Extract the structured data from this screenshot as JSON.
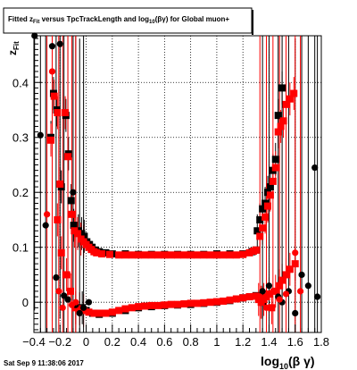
{
  "title": {
    "pre": "Fitted  z",
    "sub1": "Fit",
    "mid": " versus TpcTrackLength and log",
    "sub2": "10",
    "post": "(βγ) for Global muon+"
  },
  "ylabel": {
    "main": "z",
    "sub": "Fit"
  },
  "xlabel": {
    "main": "log",
    "sub": "10",
    "post": "(β γ)"
  },
  "footer": "Sat Sep  9 11:38:06 2017",
  "axes": {
    "xlim": [
      -0.4,
      1.8
    ],
    "ylim": [
      -0.055,
      0.485
    ],
    "xticks": [
      -0.4,
      -0.2,
      0,
      0.2,
      0.4,
      0.6,
      0.8,
      1,
      1.2,
      1.4,
      1.6,
      1.8
    ],
    "xtick_labels": [
      "−0.4",
      "−0.2",
      "0",
      "0.2",
      "0.4",
      "0.6",
      "0.8",
      "1",
      "1.2",
      "1.4",
      "1.6",
      "1.8"
    ],
    "yticks": [
      0,
      0.1,
      0.2,
      0.3,
      0.4
    ],
    "ytick_labels": [
      "0",
      "0.1",
      "0.2",
      "0.3",
      "0.4"
    ],
    "grid": true
  },
  "chart_data": {
    "type": "scatter",
    "xlim": [
      -0.4,
      1.8
    ],
    "ylim": [
      -0.055,
      0.485
    ],
    "grid": true,
    "series": [
      {
        "color": "#000000",
        "marker": "square",
        "points": [
          [
            -0.27,
            0.3
          ],
          [
            -0.25,
            0.38
          ],
          [
            -0.225,
            0.35
          ],
          [
            -0.19,
            0.21
          ],
          [
            -0.155,
            0.34
          ],
          [
            -0.135,
            0.27
          ],
          [
            -0.115,
            0.185
          ],
          [
            -0.095,
            0.14
          ],
          [
            -0.06,
            0.13
          ],
          [
            -0.035,
            0.125
          ],
          [
            -0.015,
            0.12
          ],
          [
            0.005,
            0.11
          ],
          [
            0.025,
            0.105
          ],
          [
            0.045,
            0.1
          ],
          [
            0.07,
            0.095
          ],
          [
            0.1,
            0.092
          ],
          [
            0.15,
            0.09
          ],
          [
            0.2,
            0.088
          ],
          [
            0.3,
            0.088
          ],
          [
            0.4,
            0.087
          ],
          [
            0.5,
            0.087
          ],
          [
            0.6,
            0.087
          ],
          [
            0.7,
            0.087
          ],
          [
            0.8,
            0.087
          ],
          [
            0.9,
            0.087
          ],
          [
            1.0,
            0.088
          ],
          [
            1.1,
            0.088
          ],
          [
            1.2,
            0.088
          ],
          [
            1.27,
            0.092
          ],
          [
            1.3,
            0.095
          ],
          [
            1.31,
            0.13
          ],
          [
            1.33,
            0.15
          ],
          [
            1.35,
            0.17
          ],
          [
            1.37,
            0.18
          ],
          [
            1.39,
            0.2
          ],
          [
            1.41,
            0.21
          ],
          [
            1.43,
            0.24
          ],
          [
            1.45,
            0.26
          ],
          [
            1.47,
            0.34
          ],
          [
            1.5,
            0.39
          ],
          [
            -0.03,
            -0.01
          ],
          [
            0.0,
            -0.015
          ],
          [
            0.05,
            -0.02
          ],
          [
            0.1,
            -0.022
          ],
          [
            0.2,
            -0.02
          ],
          [
            0.3,
            -0.015
          ],
          [
            0.4,
            -0.01
          ],
          [
            0.5,
            -0.008
          ],
          [
            0.6,
            -0.006
          ],
          [
            0.7,
            -0.005
          ],
          [
            0.8,
            -0.004
          ],
          [
            0.9,
            -0.002
          ],
          [
            1.0,
            0.0
          ],
          [
            1.1,
            0.003
          ],
          [
            1.2,
            0.008
          ],
          [
            1.25,
            0.01
          ],
          [
            1.3,
            0.012
          ],
          [
            1.35,
            0.0
          ]
        ]
      },
      {
        "color": "#ff0000",
        "marker": "square",
        "points": [
          [
            -0.27,
            0.295
          ],
          [
            -0.245,
            0.375
          ],
          [
            -0.22,
            0.345
          ],
          [
            -0.2,
            0.215
          ],
          [
            -0.16,
            0.345
          ],
          [
            -0.14,
            0.265
          ],
          [
            -0.11,
            0.16
          ],
          [
            -0.09,
            0.13
          ],
          [
            -0.065,
            0.125
          ],
          [
            -0.04,
            0.115
          ],
          [
            -0.02,
            0.11
          ],
          [
            0.0,
            0.105
          ],
          [
            0.02,
            0.1
          ],
          [
            0.04,
            0.096
          ],
          [
            0.06,
            0.092
          ],
          [
            0.08,
            0.09
          ],
          [
            0.12,
            0.088
          ],
          [
            0.18,
            0.087
          ],
          [
            0.25,
            0.086
          ],
          [
            0.3,
            0.086
          ],
          [
            0.35,
            0.086
          ],
          [
            0.4,
            0.086
          ],
          [
            0.45,
            0.086
          ],
          [
            0.5,
            0.086
          ],
          [
            0.55,
            0.086
          ],
          [
            0.6,
            0.086
          ],
          [
            0.65,
            0.086
          ],
          [
            0.7,
            0.086
          ],
          [
            0.75,
            0.086
          ],
          [
            0.8,
            0.086
          ],
          [
            0.85,
            0.086
          ],
          [
            0.9,
            0.086
          ],
          [
            0.95,
            0.086
          ],
          [
            1.0,
            0.086
          ],
          [
            1.05,
            0.086
          ],
          [
            1.1,
            0.086
          ],
          [
            1.15,
            0.086
          ],
          [
            1.2,
            0.087
          ],
          [
            1.25,
            0.09
          ],
          [
            1.28,
            0.093
          ],
          [
            1.3,
            0.095
          ],
          [
            1.33,
            0.12
          ],
          [
            1.35,
            0.135
          ],
          [
            1.37,
            0.155
          ],
          [
            1.39,
            0.175
          ],
          [
            1.41,
            0.195
          ],
          [
            1.43,
            0.22
          ],
          [
            1.45,
            0.245
          ],
          [
            1.47,
            0.31
          ],
          [
            1.49,
            0.32
          ],
          [
            1.51,
            0.33
          ],
          [
            1.53,
            0.36
          ],
          [
            1.56,
            0.37
          ],
          [
            1.59,
            0.38
          ],
          [
            -0.22,
            0.15
          ],
          [
            -0.19,
            0.09
          ],
          [
            -0.15,
            0.05
          ],
          [
            -0.12,
            0.02
          ],
          [
            -0.08,
            -0.01
          ],
          [
            -0.05,
            -0.012
          ],
          [
            -0.02,
            -0.015
          ],
          [
            0.02,
            -0.018
          ],
          [
            0.06,
            -0.02
          ],
          [
            0.1,
            -0.02
          ],
          [
            0.15,
            -0.02
          ],
          [
            0.2,
            -0.018
          ],
          [
            0.25,
            -0.015
          ],
          [
            0.3,
            -0.012
          ],
          [
            0.35,
            -0.01
          ],
          [
            0.4,
            -0.008
          ],
          [
            0.45,
            -0.007
          ],
          [
            0.5,
            -0.006
          ],
          [
            0.55,
            -0.006
          ],
          [
            0.6,
            -0.005
          ],
          [
            0.65,
            -0.004
          ],
          [
            0.7,
            -0.004
          ],
          [
            0.75,
            -0.003
          ],
          [
            0.8,
            -0.002
          ],
          [
            0.85,
            -0.002
          ],
          [
            0.9,
            -0.001
          ],
          [
            0.95,
            0.0
          ],
          [
            1.0,
            0.001
          ],
          [
            1.05,
            0.002
          ],
          [
            1.1,
            0.004
          ],
          [
            1.15,
            0.006
          ],
          [
            1.2,
            0.008
          ],
          [
            1.25,
            0.01
          ],
          [
            1.3,
            0.011
          ],
          [
            1.32,
            0.005
          ],
          [
            1.34,
            0.0
          ],
          [
            1.36,
            0.005
          ],
          [
            1.38,
            0.01
          ],
          [
            1.4,
            0.015
          ],
          [
            1.42,
            -0.01
          ],
          [
            1.45,
            0.02
          ],
          [
            1.48,
            0.03
          ],
          [
            1.5,
            0.04
          ],
          [
            1.53,
            0.05
          ],
          [
            1.56,
            0.06
          ],
          [
            1.6,
            0.07
          ]
        ]
      },
      {
        "color": "#000000",
        "marker": "circle",
        "points": [
          [
            -0.395,
            0.485
          ],
          [
            -0.35,
            0.304
          ],
          [
            -0.31,
            0.14
          ],
          [
            -0.26,
            0.466
          ],
          [
            -0.23,
            0.045
          ],
          [
            -0.2,
            0.47
          ],
          [
            -0.17,
            0.012
          ],
          [
            -0.14,
            0.005
          ],
          [
            -0.1,
            0.2
          ],
          [
            -0.08,
            -0.005
          ],
          [
            -0.05,
            -0.02
          ],
          [
            -0.02,
            -0.01
          ],
          [
            0.02,
            0.0
          ],
          [
            1.35,
            0.02
          ],
          [
            1.4,
            0.03
          ],
          [
            1.47,
            0.01
          ],
          [
            1.5,
            0.0
          ],
          [
            1.55,
            0.02
          ],
          [
            1.6,
            -0.02
          ],
          [
            1.65,
            0.05
          ],
          [
            1.7,
            0.03
          ],
          [
            1.75,
            0.245
          ],
          [
            1.77,
            0.01
          ]
        ]
      },
      {
        "color": "#ff0000",
        "marker": "circle",
        "points": [
          [
            -0.3,
            0.16
          ],
          [
            -0.26,
            0.42
          ],
          [
            -0.21,
            0.02
          ],
          [
            -0.18,
            -0.01
          ],
          [
            -0.14,
            0.05
          ],
          [
            -0.11,
            -0.005
          ],
          [
            -0.08,
            0.0
          ],
          [
            1.33,
            0.01
          ],
          [
            1.38,
            -0.01
          ],
          [
            1.43,
            0.02
          ],
          [
            1.48,
            0.005
          ],
          [
            1.53,
            0.015
          ],
          [
            1.6,
            0.09
          ],
          [
            1.64,
            0.02
          ]
        ]
      }
    ]
  }
}
